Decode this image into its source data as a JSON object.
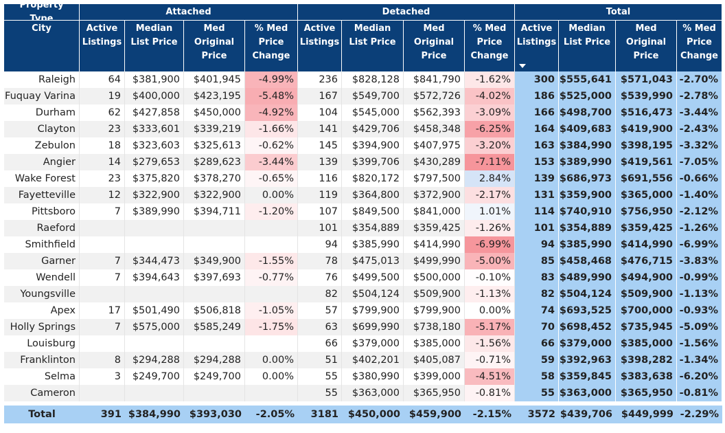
{
  "header": {
    "groups": [
      "Property Type",
      "Attached",
      "Detached",
      "Total"
    ],
    "columns": [
      "City",
      "Active Listings",
      "Median List Price",
      "Med Original Price",
      "% Med Price Change",
      "Active Listings",
      "Median List Price",
      "Med Original Price",
      "% Med Price Change",
      "Active Listings",
      "Median List Price",
      "Med Original Price",
      "% Med Price Change"
    ]
  },
  "table": {
    "rows": [
      [
        "Raleigh",
        "64",
        "$381,900",
        "$401,945",
        "-4.99%",
        "236",
        "$828,128",
        "$841,790",
        "-1.62%",
        "300",
        "$555,641",
        "$571,043",
        "-2.70%"
      ],
      [
        "Fuquay Varina",
        "19",
        "$400,000",
        "$423,195",
        "-5.48%",
        "167",
        "$549,700",
        "$572,726",
        "-4.02%",
        "186",
        "$525,000",
        "$539,990",
        "-2.78%"
      ],
      [
        "Durham",
        "62",
        "$427,858",
        "$450,000",
        "-4.92%",
        "104",
        "$545,000",
        "$562,393",
        "-3.09%",
        "166",
        "$498,700",
        "$516,473",
        "-3.44%"
      ],
      [
        "Clayton",
        "23",
        "$333,601",
        "$339,219",
        "-1.66%",
        "141",
        "$429,706",
        "$458,348",
        "-6.25%",
        "164",
        "$409,683",
        "$419,900",
        "-2.43%"
      ],
      [
        "Zebulon",
        "18",
        "$323,603",
        "$325,613",
        "-0.62%",
        "145",
        "$394,900",
        "$407,975",
        "-3.20%",
        "163",
        "$384,990",
        "$398,195",
        "-3.32%"
      ],
      [
        "Angier",
        "14",
        "$279,653",
        "$289,623",
        "-3.44%",
        "139",
        "$399,706",
        "$430,289",
        "-7.11%",
        "153",
        "$389,990",
        "$419,561",
        "-7.05%"
      ],
      [
        "Wake Forest",
        "23",
        "$375,820",
        "$378,270",
        "-0.65%",
        "116",
        "$820,172",
        "$797,500",
        "2.84%",
        "139",
        "$686,973",
        "$691,556",
        "-0.66%"
      ],
      [
        "Fayetteville",
        "12",
        "$322,900",
        "$322,900",
        "0.00%",
        "119",
        "$364,800",
        "$372,900",
        "-2.17%",
        "131",
        "$359,900",
        "$365,000",
        "-1.40%"
      ],
      [
        "Pittsboro",
        "7",
        "$389,990",
        "$394,711",
        "-1.20%",
        "107",
        "$849,500",
        "$841,000",
        "1.01%",
        "114",
        "$740,910",
        "$756,950",
        "-2.12%"
      ],
      [
        "Raeford",
        null,
        null,
        null,
        null,
        "101",
        "$354,889",
        "$359,425",
        "-1.26%",
        "101",
        "$354,889",
        "$359,425",
        "-1.26%"
      ],
      [
        "Smithfield",
        null,
        null,
        null,
        null,
        "94",
        "$385,990",
        "$414,990",
        "-6.99%",
        "94",
        "$385,990",
        "$414,990",
        "-6.99%"
      ],
      [
        "Garner",
        "7",
        "$344,473",
        "$349,900",
        "-1.55%",
        "78",
        "$475,013",
        "$499,990",
        "-5.00%",
        "85",
        "$458,468",
        "$476,715",
        "-3.83%"
      ],
      [
        "Wendell",
        "7",
        "$394,643",
        "$397,693",
        "-0.77%",
        "76",
        "$499,500",
        "$500,000",
        "-0.10%",
        "83",
        "$489,990",
        "$494,900",
        "-0.99%"
      ],
      [
        "Youngsville",
        null,
        null,
        null,
        null,
        "82",
        "$504,124",
        "$509,900",
        "-1.13%",
        "82",
        "$504,124",
        "$509,900",
        "-1.13%"
      ],
      [
        "Apex",
        "17",
        "$501,490",
        "$506,818",
        "-1.05%",
        "57",
        "$799,900",
        "$799,900",
        "0.00%",
        "74",
        "$693,525",
        "$700,000",
        "-0.93%"
      ],
      [
        "Holly Springs",
        "7",
        "$575,000",
        "$585,249",
        "-1.75%",
        "63",
        "$699,990",
        "$738,180",
        "-5.17%",
        "70",
        "$698,452",
        "$735,945",
        "-5.09%"
      ],
      [
        "Louisburg",
        null,
        null,
        null,
        null,
        "66",
        "$379,000",
        "$385,000",
        "-1.56%",
        "66",
        "$379,000",
        "$385,000",
        "-1.56%"
      ],
      [
        "Franklinton",
        "8",
        "$294,288",
        "$294,288",
        "0.00%",
        "51",
        "$402,201",
        "$405,087",
        "-0.71%",
        "59",
        "$392,963",
        "$398,282",
        "-1.34%"
      ],
      [
        "Selma",
        "3",
        "$249,700",
        "$249,700",
        "0.00%",
        "55",
        "$380,990",
        "$399,000",
        "-4.51%",
        "58",
        "$359,845",
        "$383,638",
        "-6.20%"
      ],
      [
        "Cameron",
        null,
        null,
        null,
        null,
        "55",
        "$363,000",
        "$365,950",
        "-0.81%",
        "55",
        "$363,000",
        "$365,950",
        "-0.81%"
      ]
    ],
    "total": [
      "Total",
      "391",
      "$384,990",
      "$393,030",
      "-2.05%",
      "3181",
      "$450,000",
      "$459,900",
      "-2.15%",
      "3572",
      "$439,706",
      "$449,999",
      "-2.29%"
    ]
  }
}
